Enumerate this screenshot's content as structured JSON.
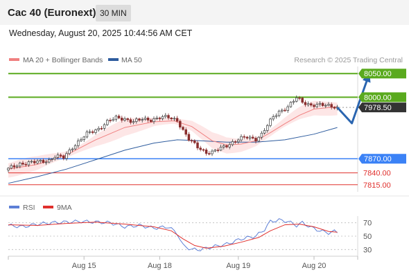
{
  "header": {
    "title": "Cac 40 (Euronext)",
    "timeframe": "30 MIN"
  },
  "timestamp": "Wednesday, August 20, 2025 10:44:56 AM CET",
  "credit": "Research © 2025 Trading Central",
  "colors": {
    "ma20": "#f08080",
    "ma50": "#2e5c9e",
    "resistance": "#5aaa1e",
    "pivot": "#3b82f6",
    "support": "#e0302d",
    "rsi": "#5d7fd6",
    "rsi_ma": "#e0302d",
    "current": "#333333"
  },
  "chart_data": [
    {
      "type": "candlestick",
      "legend": [
        {
          "name": "MA 20 + Bollinger Bands"
        },
        {
          "name": "MA 50"
        }
      ],
      "legend_position": "top-left",
      "x_ticks": [
        "Aug 15",
        "Aug 18",
        "Aug 19",
        "Aug 20"
      ],
      "ylim": [
        7800,
        8065
      ],
      "levels": [
        {
          "value": 8050.0,
          "label": "8050.00",
          "kind": "resistance"
        },
        {
          "value": 8000.0,
          "label": "8000.00",
          "kind": "resistance"
        },
        {
          "value": 7978.5,
          "label": "7978.50",
          "kind": "current"
        },
        {
          "value": 7870.0,
          "label": "7870.00",
          "kind": "pivot"
        },
        {
          "value": 7840.0,
          "label": "7840.00",
          "kind": "support"
        },
        {
          "value": 7815.0,
          "label": "7815.00",
          "kind": "support"
        }
      ],
      "price_path": [
        [
          0,
          7848
        ],
        [
          4,
          7860
        ],
        [
          9,
          7862
        ],
        [
          14,
          7867
        ],
        [
          16,
          7875
        ],
        [
          19,
          7872
        ],
        [
          22,
          7895
        ],
        [
          27,
          7922
        ],
        [
          31,
          7934
        ],
        [
          34,
          7948
        ],
        [
          37,
          7956
        ],
        [
          40,
          7955
        ],
        [
          43,
          7948
        ],
        [
          46,
          7953
        ],
        [
          49,
          7953
        ],
        [
          52,
          7957
        ],
        [
          55,
          7957
        ],
        [
          58,
          7952
        ],
        [
          60,
          7930
        ],
        [
          62,
          7910
        ],
        [
          65,
          7895
        ],
        [
          68,
          7884
        ],
        [
          70,
          7883
        ],
        [
          73,
          7892
        ],
        [
          76,
          7902
        ],
        [
          79,
          7911
        ],
        [
          82,
          7915
        ],
        [
          85,
          7912
        ],
        [
          87,
          7922
        ],
        [
          89,
          7940
        ],
        [
          91,
          7958
        ],
        [
          93,
          7970
        ],
        [
          96,
          7980
        ],
        [
          99,
          7998
        ],
        [
          101,
          7990
        ],
        [
          104,
          7984
        ],
        [
          107,
          7983
        ],
        [
          110,
          7982
        ],
        [
          112,
          7981
        ],
        [
          113,
          7978.5
        ]
      ],
      "ma20": [
        [
          0,
          7848
        ],
        [
          10,
          7858
        ],
        [
          20,
          7878
        ],
        [
          30,
          7910
        ],
        [
          40,
          7936
        ],
        [
          50,
          7948
        ],
        [
          57,
          7950
        ],
        [
          63,
          7938
        ],
        [
          70,
          7908
        ],
        [
          75,
          7899
        ],
        [
          80,
          7901
        ],
        [
          85,
          7908
        ],
        [
          90,
          7925
        ],
        [
          95,
          7944
        ],
        [
          100,
          7962
        ],
        [
          105,
          7975
        ],
        [
          113,
          7980
        ]
      ],
      "ma50": [
        [
          0,
          7818
        ],
        [
          10,
          7832
        ],
        [
          20,
          7848
        ],
        [
          30,
          7868
        ],
        [
          40,
          7888
        ],
        [
          50,
          7903
        ],
        [
          58,
          7910
        ],
        [
          66,
          7908
        ],
        [
          75,
          7905
        ],
        [
          85,
          7905
        ],
        [
          95,
          7910
        ],
        [
          105,
          7922
        ],
        [
          113,
          7936
        ]
      ],
      "bb_width": 12,
      "forecast": [
        [
          113,
          7978.5
        ],
        [
          118,
          7945
        ],
        [
          124,
          8050
        ]
      ]
    },
    {
      "type": "line",
      "legend": [
        {
          "name": "RSI"
        },
        {
          "name": "9MA"
        }
      ],
      "legend_position": "top-left",
      "y_ticks": [
        "70",
        "50",
        "30"
      ],
      "ylim": [
        20,
        80
      ],
      "rsi": [
        [
          0,
          66
        ],
        [
          5,
          64
        ],
        [
          10,
          68
        ],
        [
          15,
          70
        ],
        [
          20,
          71
        ],
        [
          25,
          72
        ],
        [
          30,
          71
        ],
        [
          35,
          70
        ],
        [
          40,
          64
        ],
        [
          45,
          66
        ],
        [
          50,
          62
        ],
        [
          55,
          64
        ],
        [
          58,
          54
        ],
        [
          60,
          36
        ],
        [
          63,
          30
        ],
        [
          66,
          30
        ],
        [
          70,
          34
        ],
        [
          75,
          38
        ],
        [
          80,
          46
        ],
        [
          85,
          50
        ],
        [
          88,
          60
        ],
        [
          90,
          72
        ],
        [
          93,
          74
        ],
        [
          96,
          72
        ],
        [
          99,
          66
        ],
        [
          101,
          70
        ],
        [
          104,
          63
        ],
        [
          107,
          58
        ],
        [
          110,
          55
        ],
        [
          112,
          57
        ],
        [
          113,
          56
        ]
      ],
      "ma9": [
        [
          0,
          67
        ],
        [
          10,
          66
        ],
        [
          20,
          69
        ],
        [
          30,
          71
        ],
        [
          40,
          68
        ],
        [
          50,
          64
        ],
        [
          56,
          58
        ],
        [
          60,
          46
        ],
        [
          64,
          36
        ],
        [
          68,
          32
        ],
        [
          74,
          35
        ],
        [
          80,
          41
        ],
        [
          86,
          48
        ],
        [
          90,
          58
        ],
        [
          95,
          67
        ],
        [
          100,
          68
        ],
        [
          105,
          64
        ],
        [
          110,
          57
        ],
        [
          113,
          56
        ]
      ]
    }
  ]
}
